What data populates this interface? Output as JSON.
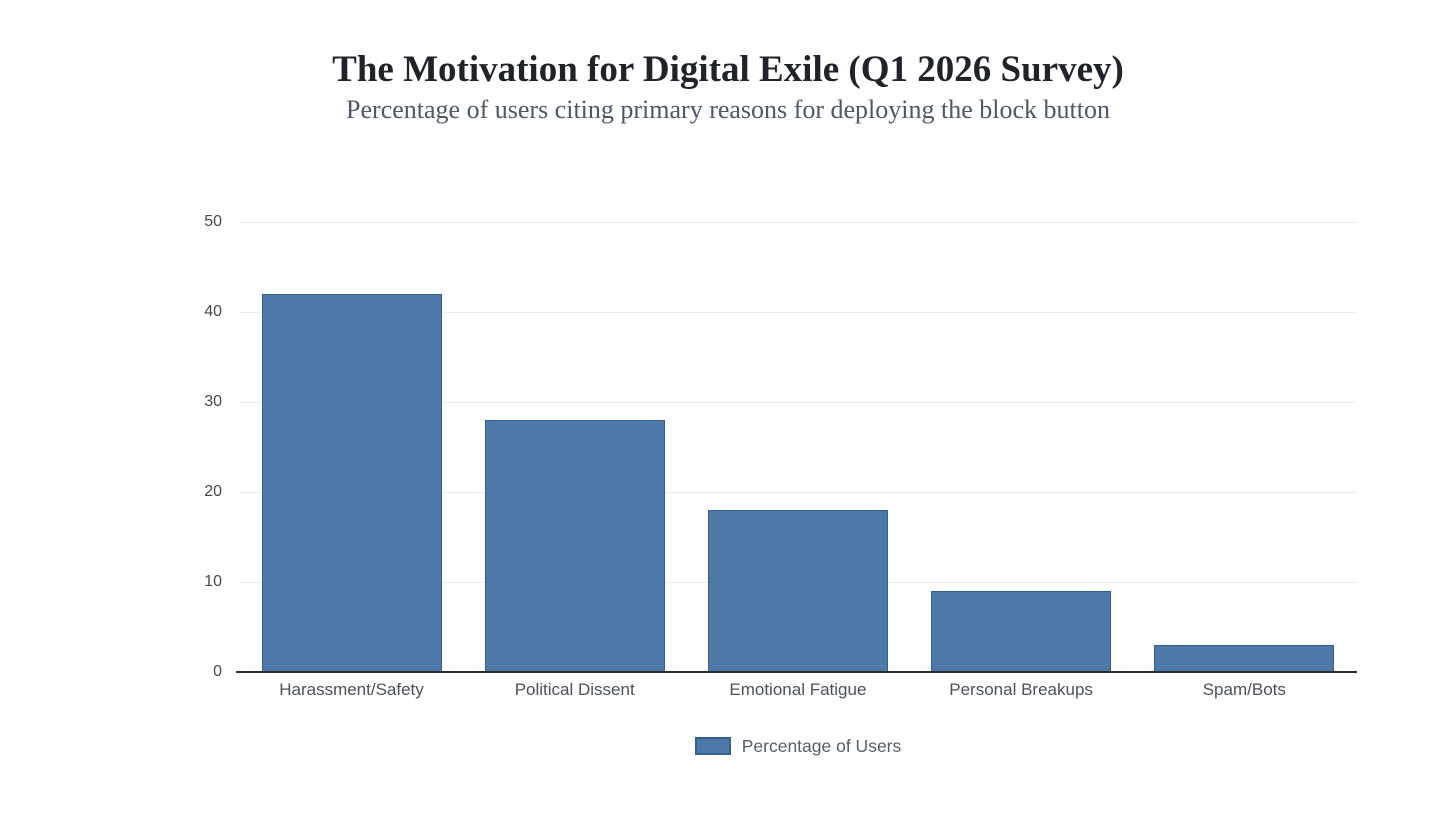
{
  "chart_data": {
    "type": "bar",
    "title": "The Motivation for Digital Exile (Q1 2026 Survey)",
    "subtitle": "Percentage of users citing primary reasons for deploying the block button",
    "categories": [
      "Harassment/Safety",
      "Political Dissent",
      "Emotional Fatigue",
      "Personal Breakups",
      "Spam/Bots"
    ],
    "values": [
      42,
      28,
      18,
      9,
      3
    ],
    "series": [
      {
        "name": "Percentage of Users",
        "values": [
          42,
          28,
          18,
          9,
          3
        ]
      }
    ],
    "xlabel": "",
    "ylabel": "",
    "ylim": [
      0,
      50
    ],
    "yticks": [
      0,
      10,
      20,
      30,
      40,
      50
    ],
    "grid": true,
    "legend_position": "bottom-center",
    "legend_label": "Percentage of Users"
  },
  "colors": {
    "bar_fill": "#4d78a8",
    "bar_border": "#33618e",
    "gridline": "#e9eaef",
    "axis_line": "#2b2b2b",
    "y_tick_label": "#45494e",
    "x_category_label": "#4b5157",
    "legend_label": "#55606b",
    "title": "#20242a",
    "subtitle": "#4e5866",
    "background": "#ffffff"
  }
}
